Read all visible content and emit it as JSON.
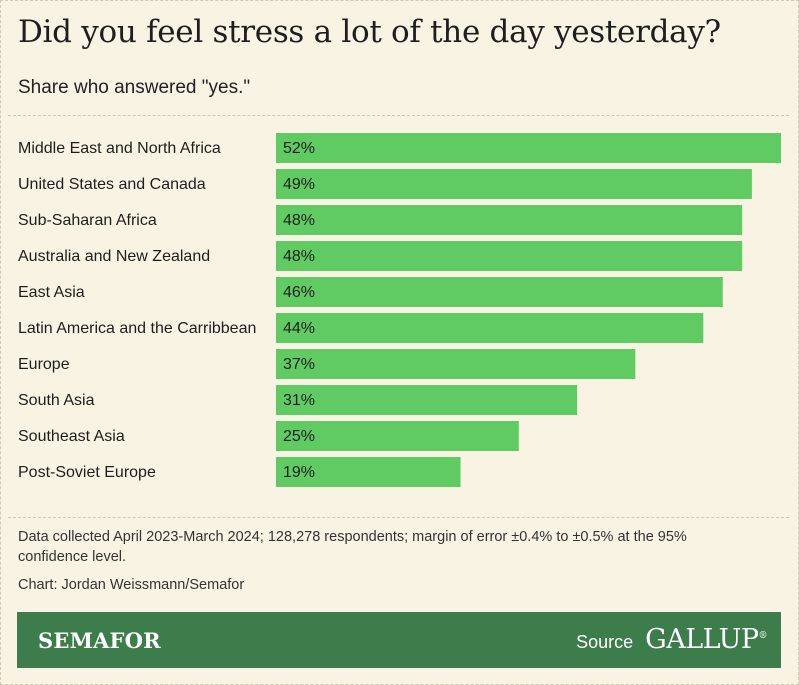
{
  "title": "Did you feel stress a lot of the day yesterday?",
  "subtitle": "Share who answered \"yes.\"",
  "note": "Data collected April 2023-March 2024; 128,278 respondents; margin of error ±0.4% to ±0.5% at the 95% confidence level.",
  "credit": "Chart: Jordan Weissmann/Semafor",
  "footer": {
    "brand": "SEMAFOR",
    "source_label": "Source",
    "source_logo": "GALLUP",
    "registered_mark": "®"
  },
  "colors": {
    "background": "#f8f3e2",
    "bar": "#5fcb62",
    "footer": "#3d7d4b"
  },
  "chart_data": {
    "type": "bar",
    "orientation": "horizontal",
    "categories": [
      "Middle East and North Africa",
      "United States and Canada",
      "Sub-Saharan Africa",
      "Australia and New Zealand",
      "East Asia",
      "Latin America and the Carribbean",
      "Europe",
      "South Asia",
      "Southeast Asia",
      "Post-Soviet Europe"
    ],
    "values": [
      52,
      49,
      48,
      48,
      46,
      44,
      37,
      31,
      25,
      19
    ],
    "value_labels": [
      "52%",
      "49%",
      "48%",
      "48%",
      "46%",
      "44%",
      "37%",
      "31%",
      "25%",
      "19%"
    ],
    "unit": "%",
    "xlim": [
      0,
      52
    ],
    "grid": false,
    "legend": "none"
  }
}
